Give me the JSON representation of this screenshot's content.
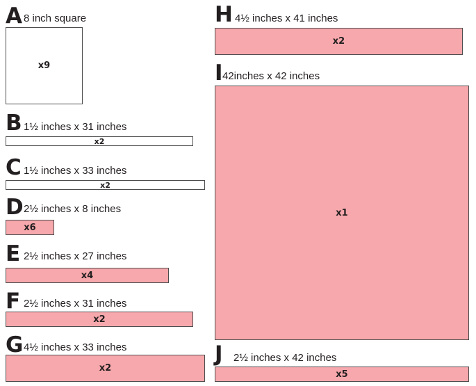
{
  "pieces": {
    "A": {
      "letter": "A",
      "label": "8 inch square",
      "qty": "x9",
      "color": "#ffffff"
    },
    "B": {
      "letter": "B",
      "label": "1½ inches x 31 inches",
      "qty": "x2",
      "color": "#ffffff"
    },
    "C": {
      "letter": "C",
      "label": "1½ inches x 33 inches",
      "qty": "x2",
      "color": "#ffffff"
    },
    "D": {
      "letter": "D",
      "label": "2½ inches x 8 inches",
      "qty": "x6",
      "color": "#f7a8ac"
    },
    "E": {
      "letter": "E",
      "label": "2½ inches x 27 inches",
      "qty": "x4",
      "color": "#f7a8ac"
    },
    "F": {
      "letter": "F",
      "label": "2½ inches x 31 inches",
      "qty": "x2",
      "color": "#f7a8ac"
    },
    "G": {
      "letter": "G",
      "label": "4½ inches x 33 inches",
      "qty": "x2",
      "color": "#f7a8ac"
    },
    "H": {
      "letter": "H",
      "label": "4½ inches x 41 inches",
      "qty": "x2",
      "color": "#f7a8ac"
    },
    "I": {
      "letter": "I",
      "label": "42inches x 42 inches",
      "qty": "x1",
      "color": "#f7a8ac"
    },
    "J": {
      "letter": "J",
      "label": "2½ inches x 42 inches",
      "qty": "x5",
      "color": "#f7a8ac"
    }
  }
}
